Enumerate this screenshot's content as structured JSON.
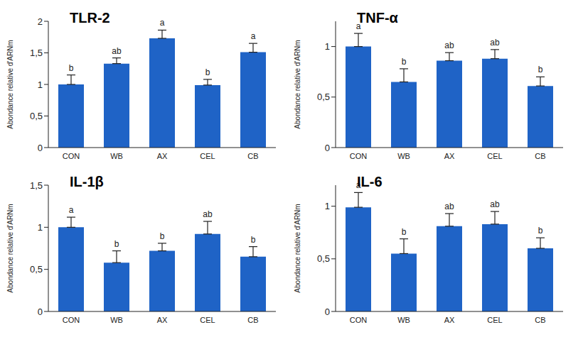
{
  "chart_data": [
    {
      "type": "bar",
      "title": "TLR-2",
      "ylabel": "Abondance relative d'ARNm",
      "categories": [
        "CON",
        "WB",
        "AX",
        "CEL",
        "CB"
      ],
      "values": [
        1.0,
        1.33,
        1.73,
        0.99,
        1.51
      ],
      "errors": [
        0.15,
        0.09,
        0.13,
        0.09,
        0.14
      ],
      "letters": [
        "b",
        "ab",
        "a",
        "b",
        "a"
      ],
      "color": "#1f63c6",
      "ylim": [
        0,
        2
      ],
      "yticks": [
        0,
        {
          "value": 0.5,
          "label": "0,5"
        },
        1,
        {
          "value": 1.5,
          "label": "1,5"
        },
        2
      ],
      "grid": false
    },
    {
      "type": "bar",
      "title": "TNF-α",
      "ylabel": "Abondance relative d'ARNm",
      "categories": [
        "CON",
        "WB",
        "AX",
        "CEL",
        "CB"
      ],
      "values": [
        1.0,
        0.65,
        0.86,
        0.88,
        0.61
      ],
      "errors": [
        0.13,
        0.13,
        0.08,
        0.09,
        0.09
      ],
      "letters": [
        "a",
        "b",
        "ab",
        "ab",
        "b"
      ],
      "color": "#1f63c6",
      "ylim": [
        0,
        1.25
      ],
      "yticks": [
        0,
        {
          "value": 0.5,
          "label": "0,5"
        },
        1
      ],
      "grid": false
    },
    {
      "type": "bar",
      "title": "IL-1β",
      "ylabel": "Abondance relative d'ARNm",
      "categories": [
        "CON",
        "WB",
        "AX",
        "CEL",
        "CB"
      ],
      "values": [
        1.0,
        0.58,
        0.72,
        0.92,
        0.65
      ],
      "errors": [
        0.12,
        0.14,
        0.09,
        0.15,
        0.12
      ],
      "letters": [
        "a",
        "b",
        "b",
        "ab",
        "b"
      ],
      "color": "#1f63c6",
      "ylim": [
        0,
        1.5
      ],
      "yticks": [
        0,
        {
          "value": 0.5,
          "label": "0,5"
        },
        1,
        {
          "value": 1.5,
          "label": "1,5"
        }
      ],
      "grid": false
    },
    {
      "type": "bar",
      "title": "IL-6",
      "ylabel": "Abondance relative d'ARNm",
      "categories": [
        "CON",
        "WB",
        "AX",
        "CEL",
        "CB"
      ],
      "values": [
        0.99,
        0.55,
        0.81,
        0.83,
        0.6
      ],
      "errors": [
        0.14,
        0.14,
        0.12,
        0.12,
        0.1
      ],
      "letters": [
        "a",
        "b",
        "ab",
        "ab",
        "b"
      ],
      "color": "#1f63c6",
      "ylim": [
        0,
        1.2
      ],
      "yticks": [
        0,
        {
          "value": 0.5,
          "label": "0,5"
        },
        1
      ],
      "grid": false
    }
  ]
}
